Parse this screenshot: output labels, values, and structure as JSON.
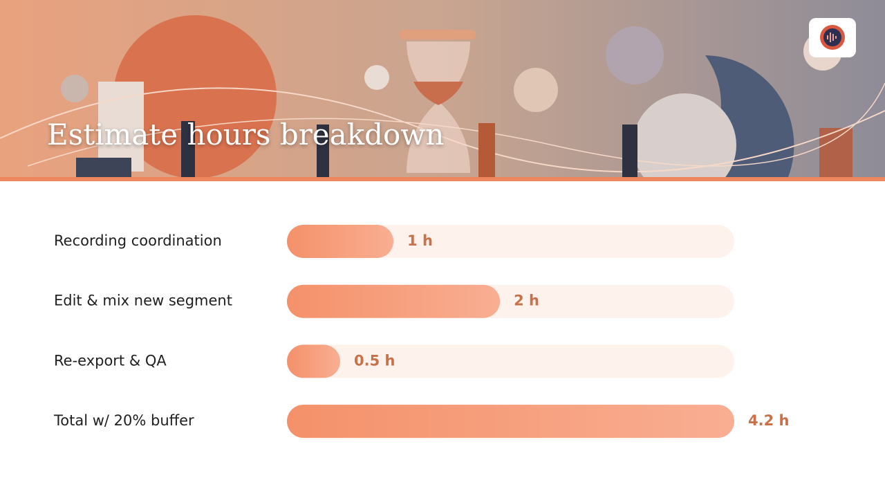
{
  "chart_data": {
    "type": "bar",
    "orientation": "horizontal",
    "title": "Estimate hours breakdown",
    "categories": [
      "Recording coordination",
      "Edit & mix new segment",
      "Re-export & QA",
      "Total w/ 20% buffer"
    ],
    "values": [
      1,
      2,
      0.5,
      4.2
    ],
    "value_labels": [
      "1 h",
      "2 h",
      "0.5 h",
      "4.2 h"
    ],
    "xlim": [
      0,
      4.2
    ],
    "color": "#f4916a"
  }
}
